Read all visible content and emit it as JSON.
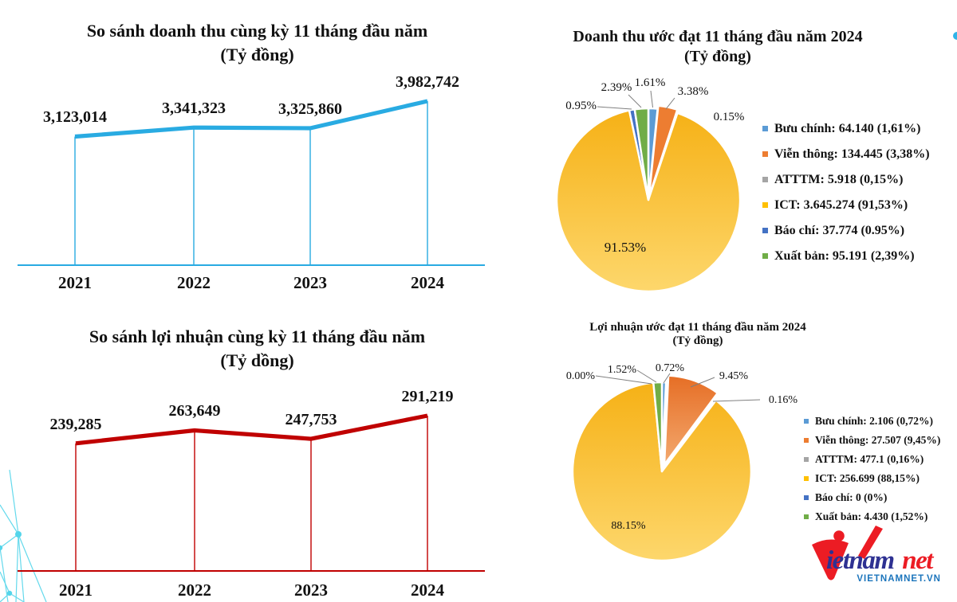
{
  "chart_data": [
    {
      "id": "revenue-line",
      "type": "line",
      "title": "So sánh doanh thu cùng kỳ 11 tháng đầu năm",
      "subtitle": "(Tỷ đồng)",
      "categories": [
        "2021",
        "2022",
        "2023",
        "2024"
      ],
      "values": [
        3123014,
        3341323,
        3325860,
        3982742
      ],
      "value_labels": [
        "3,123,014",
        "3,341,323",
        "3,325,860",
        "3,982,742"
      ],
      "line_color": "#29ABE2",
      "ylim": [
        0,
        3982742
      ],
      "grid": false,
      "legend": "none"
    },
    {
      "id": "profit-line",
      "type": "line",
      "title": "So sánh lợi nhuận cùng kỳ 11 tháng đầu năm",
      "subtitle": "(Tỷ dồng)",
      "categories": [
        "2021",
        "2022",
        "2023",
        "2024"
      ],
      "values": [
        239285,
        263649,
        247753,
        291219
      ],
      "value_labels": [
        "239,285",
        "263,649",
        "247,753",
        "291,219"
      ],
      "line_color": "#C00000",
      "ylim": [
        0,
        291219
      ],
      "grid": false,
      "legend": "none"
    },
    {
      "id": "revenue-pie",
      "type": "pie",
      "title": "Doanh thu ước đạt 11 tháng đầu năm 2024",
      "subtitle": "(Tỷ đồng)",
      "legend_position": "right",
      "slices": [
        {
          "label": "Bưu chính",
          "value": 64140,
          "pct": 1.61,
          "callout": "1.61%",
          "legend_text": "Bưu chính: 64.140 (1,61%)",
          "color": "#5B9BD5"
        },
        {
          "label": "Viễn thông",
          "value": 134445,
          "pct": 3.38,
          "callout": "3.38%",
          "legend_text": "Viễn thông: 134.445 (3,38%)",
          "color": "#ED7D31"
        },
        {
          "label": "ATTTM",
          "value": 5918,
          "pct": 0.15,
          "callout": "0.15%",
          "legend_text": "ATTTM: 5.918 (0,15%)",
          "color": "#A5A5A5"
        },
        {
          "label": "ICT",
          "value": 3645274,
          "pct": 91.53,
          "callout": "91.53%",
          "legend_text": "ICT: 3.645.274 (91,53%)",
          "color": "gradient-yellow"
        },
        {
          "label": "Báo chí",
          "value": 37774,
          "pct": 0.95,
          "callout": "0.95%",
          "legend_text": "Báo chí: 37.774 (0.95%)",
          "color": "#4472C4"
        },
        {
          "label": "Xuất bản",
          "value": 95191,
          "pct": 2.39,
          "callout": "2.39%",
          "legend_text": "Xuất bản: 95.191 (2,39%)",
          "color": "#70AD47"
        }
      ]
    },
    {
      "id": "profit-pie",
      "type": "pie",
      "title": "Lợi nhuận ước đạt 11 tháng đầu năm 2024",
      "subtitle": "(Tỷ đồng)",
      "legend_position": "right",
      "slices": [
        {
          "label": "Bưu chính",
          "value": 2106,
          "pct": 0.72,
          "callout": "0.72%",
          "legend_text": "Bưu chính: 2.106 (0,72%)",
          "color": "#5B9BD5"
        },
        {
          "label": "Viễn thông",
          "value": 27507,
          "pct": 9.45,
          "callout": "9.45%",
          "legend_text": "Viễn thông: 27.507 (9,45%)",
          "color": "gradient-orange"
        },
        {
          "label": "ATTTM",
          "value": 477.1,
          "pct": 0.16,
          "callout": "0.16%",
          "legend_text": "ATTTM: 477.1 (0,16%)",
          "color": "#A5A5A5"
        },
        {
          "label": "ICT",
          "value": 256699,
          "pct": 88.15,
          "callout": "88.15%",
          "legend_text": "ICT: 256.699 (88,15%)",
          "color": "gradient-yellow"
        },
        {
          "label": "Báo chí",
          "value": 0,
          "pct": 0,
          "callout": "0.00%",
          "legend_text": "Báo chí: 0 (0%)",
          "color": "#4472C4"
        },
        {
          "label": "Xuất bản",
          "value": 4430,
          "pct": 1.52,
          "callout": "1.52%",
          "legend_text": "Xuất bản: 4.430 (1,52%)",
          "color": "#70AD47"
        }
      ]
    }
  ],
  "logo": {
    "brand_prefix": "ietnam",
    "brand_suffix": "net",
    "domain": "VIETNAMNET.VN",
    "red": "#EC1C24",
    "navy": "#2E3192",
    "domain_blue": "#1C75BC"
  },
  "decorations": {
    "network_color": "#54D5EA",
    "corner_dot_color": "#2FB4E8"
  }
}
